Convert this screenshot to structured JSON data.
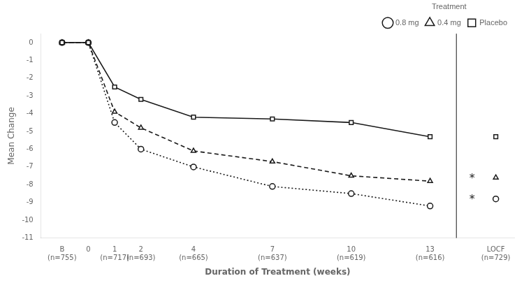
{
  "chart_data": {
    "type": "line",
    "xlabel": "Duration of Treatment (weeks)",
    "ylabel": "Mean Change",
    "legend_title": "Treatment",
    "legend": "upper right",
    "grid": false,
    "x": [
      -1,
      0,
      1,
      2,
      4,
      7,
      10,
      13
    ],
    "series": [
      {
        "name": "Placebo",
        "color": "#1a1a1a",
        "line_style": "solid",
        "marker": "square",
        "values": [
          0,
          0,
          -2.5,
          -3.2,
          -4.2,
          -4.3,
          -4.5,
          -5.3
        ],
        "locf_value": -5.3
      },
      {
        "name": "0.4 mg",
        "color": "#1a1a1a",
        "line_style": "dashed",
        "marker": "triangle",
        "values": [
          0,
          0,
          -3.9,
          -4.8,
          -6.1,
          -6.7,
          -7.5,
          -7.8
        ],
        "locf_value": -7.6
      },
      {
        "name": "0.8 mg",
        "color": "#1a1a1a",
        "line_style": "dotted",
        "marker": "circle",
        "values": [
          0,
          0,
          -4.5,
          -6.0,
          -7.0,
          -8.1,
          -8.5,
          -9.2
        ],
        "locf_value": -8.8
      }
    ],
    "locf_x": 15.5,
    "vline_x": 14.0,
    "color": "#1a1a1a",
    "annotations": [
      {
        "text": "*",
        "x": 14.6,
        "y": -7.5
      },
      {
        "text": "*",
        "x": 14.6,
        "y": -8.7
      }
    ],
    "xlim": [
      -1.8,
      16.2
    ],
    "xticks": [
      {
        "value": -1,
        "label": "B\n(n=755)"
      },
      0,
      {
        "value": 1,
        "label": "1\n(n=717)"
      },
      {
        "value": 2,
        "label": "2\n(n=693)"
      },
      {
        "value": 4,
        "label": "4\n(n=665)"
      },
      {
        "value": 7,
        "label": "7\n(n=637)"
      },
      {
        "value": 10,
        "label": "10\n(n=619)"
      },
      {
        "value": 13,
        "label": "13\n(n=616)"
      },
      {
        "value": 15.5,
        "label": "LOCF\n(n=729)"
      }
    ],
    "ylim": [
      -11,
      0.5
    ],
    "yticks": [
      0,
      -1,
      -2,
      -3,
      -4,
      -5,
      -6,
      -7,
      -8,
      -9,
      -10,
      -11
    ]
  }
}
